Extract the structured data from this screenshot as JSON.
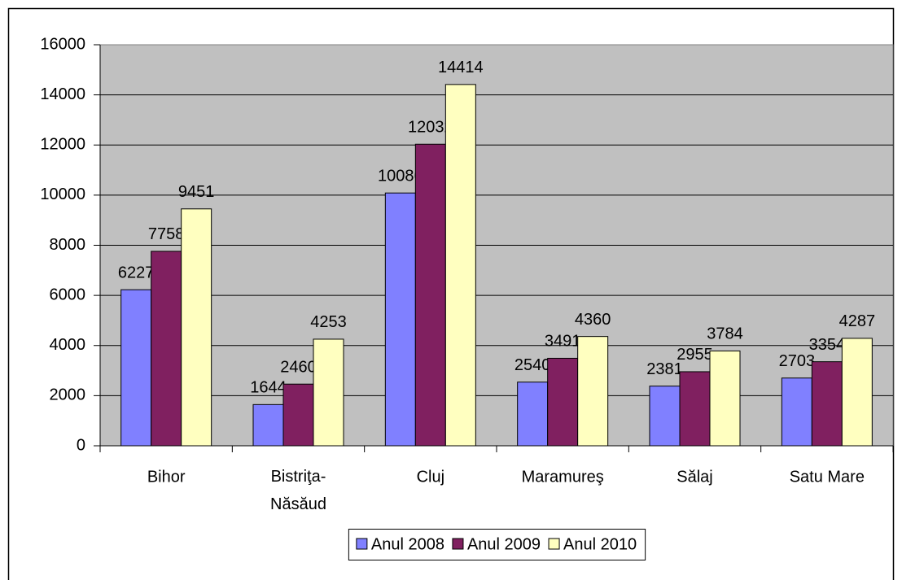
{
  "chart_data": {
    "type": "bar",
    "categories": [
      "Bihor",
      "Bistriţa-Năsăud",
      "Cluj",
      "Maramureş",
      "Sălaj",
      "Satu Mare"
    ],
    "series": [
      {
        "name": "Anul 2008",
        "color": "#8080ff",
        "values": [
          6227,
          1644,
          10086,
          2540,
          2381,
          2703
        ]
      },
      {
        "name": "Anul 2009",
        "color": "#802060",
        "values": [
          7758,
          2460,
          12032,
          3491,
          2955,
          3354
        ]
      },
      {
        "name": "Anul 2010",
        "color": "#ffffc0",
        "values": [
          9451,
          4253,
          14414,
          4360,
          3784,
          4287
        ]
      }
    ],
    "ylim": [
      0,
      16000
    ],
    "yticks": [
      0,
      2000,
      4000,
      6000,
      8000,
      10000,
      12000,
      14000,
      16000
    ],
    "grid": true,
    "legend": "bottom"
  }
}
